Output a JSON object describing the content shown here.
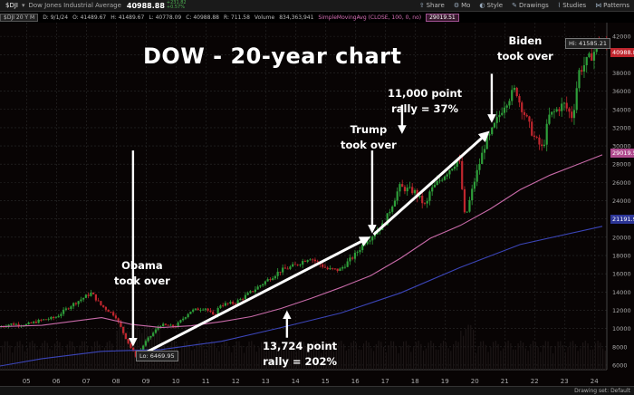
{
  "toolbar": {
    "symbol": "$DJI",
    "description": "Dow Jones Industrial Average",
    "last": "40988.88",
    "change_line1": "+231.82",
    "change_line2": "+0.57%",
    "buttons": [
      {
        "icon": "share-icon",
        "label": "Share"
      },
      {
        "icon": "gear-icon",
        "label": "Mo"
      },
      {
        "icon": "style-icon",
        "label": "Style"
      },
      {
        "icon": "pencil-icon",
        "label": "Drawings"
      },
      {
        "icon": "studies-icon",
        "label": "Studies"
      },
      {
        "icon": "patterns-icon",
        "label": "Patterns"
      }
    ]
  },
  "infoline": {
    "date": "D: 9/1/24",
    "open": "O: 41489.67",
    "high": "H: 41489.67",
    "low": "L: 40778.09",
    "close": "C: 40988.88",
    "range": "R: 711.58",
    "volume_label": "Volume",
    "volume": "834,363,941",
    "sma_label": "SimpleMovingAvg (CLOSE, 100, 0, no)",
    "sma_value": "29019.51",
    "chart_spec": "$DJI 20 Y M"
  },
  "headline": "DOW - 20-year chart",
  "annotations": {
    "obama": "Obama\ntook over",
    "trump": "Trump\ntook over",
    "biden": "Biden\ntook over",
    "rally_11000": "11,000 point\nrally = 37%",
    "rally_13724": "13,724 point\nrally = 202%"
  },
  "labels": {
    "hi": "Hi: 41585.21",
    "lo": "Lo: 6469.95",
    "drawing_set": "Drawing set: Default"
  },
  "price_tags": {
    "last": "40988.88",
    "sma100": "29019.51",
    "blue": "21191.90"
  },
  "chart_data": {
    "type": "candlestick",
    "title": "DOW - 20-year chart",
    "x_tick_labels": [
      "05",
      "06",
      "07",
      "08",
      "09",
      "10",
      "11",
      "12",
      "13",
      "14",
      "15",
      "16",
      "17",
      "18",
      "19",
      "20",
      "21",
      "22",
      "23",
      "24"
    ],
    "x_range": [
      2004.6,
      2024.9
    ],
    "y_tick_labels": [
      6000,
      8000,
      10000,
      12000,
      14000,
      16000,
      18000,
      20000,
      22000,
      24000,
      26000,
      28000,
      30000,
      32000,
      34000,
      36000,
      38000,
      40000,
      42000
    ],
    "y_range": [
      5500,
      43500
    ],
    "price_path": [
      [
        2004.6,
        10150
      ],
      [
        2005.0,
        10500
      ],
      [
        2005.5,
        10400
      ],
      [
        2006.0,
        10900
      ],
      [
        2006.5,
        11200
      ],
      [
        2007.0,
        12500
      ],
      [
        2007.7,
        13900
      ],
      [
        2008.0,
        12600
      ],
      [
        2008.5,
        11400
      ],
      [
        2008.8,
        9300
      ],
      [
        2009.0,
        8000
      ],
      [
        2009.2,
        6900
      ],
      [
        2009.5,
        8500
      ],
      [
        2010.0,
        10400
      ],
      [
        2010.5,
        10200
      ],
      [
        2011.0,
        11900
      ],
      [
        2011.5,
        12300
      ],
      [
        2011.8,
        11300
      ],
      [
        2012.0,
        12600
      ],
      [
        2012.5,
        12800
      ],
      [
        2013.0,
        13900
      ],
      [
        2013.5,
        15100
      ],
      [
        2014.0,
        16300
      ],
      [
        2014.5,
        16900
      ],
      [
        2015.0,
        17800
      ],
      [
        2015.6,
        16500
      ],
      [
        2016.0,
        16400
      ],
      [
        2016.5,
        18000
      ],
      [
        2016.9,
        19700
      ],
      [
        2017.0,
        19900
      ],
      [
        2017.5,
        21500
      ],
      [
        2018.0,
        25500
      ],
      [
        2018.5,
        25000
      ],
      [
        2018.9,
        23300
      ],
      [
        2019.0,
        24900
      ],
      [
        2019.5,
        26800
      ],
      [
        2020.0,
        28600
      ],
      [
        2020.2,
        21900
      ],
      [
        2020.5,
        26000
      ],
      [
        2020.9,
        30600
      ],
      [
        2021.0,
        30900
      ],
      [
        2021.5,
        34500
      ],
      [
        2021.9,
        36300
      ],
      [
        2022.0,
        35000
      ],
      [
        2022.5,
        31000
      ],
      [
        2022.8,
        29600
      ],
      [
        2023.0,
        33200
      ],
      [
        2023.5,
        34600
      ],
      [
        2023.8,
        33100
      ],
      [
        2024.0,
        38100
      ],
      [
        2024.5,
        40200
      ],
      [
        2024.67,
        41585
      ],
      [
        2024.75,
        40989
      ]
    ],
    "sma100_path": [
      [
        2004.6,
        10200
      ],
      [
        2006,
        10350
      ],
      [
        2008,
        11200
      ],
      [
        2009,
        10450
      ],
      [
        2010,
        10100
      ],
      [
        2011,
        10300
      ],
      [
        2012,
        10750
      ],
      [
        2013,
        11300
      ],
      [
        2014,
        12200
      ],
      [
        2015,
        13300
      ],
      [
        2016,
        14500
      ],
      [
        2017,
        15800
      ],
      [
        2018,
        17700
      ],
      [
        2019,
        19900
      ],
      [
        2020,
        21300
      ],
      [
        2021,
        23100
      ],
      [
        2022,
        25200
      ],
      [
        2023,
        26800
      ],
      [
        2024.75,
        29019.51
      ]
    ],
    "long_ma_path": [
      [
        2004.6,
        5900
      ],
      [
        2006,
        6700
      ],
      [
        2008,
        7500
      ],
      [
        2010,
        7700
      ],
      [
        2012,
        8600
      ],
      [
        2014,
        10100
      ],
      [
        2016,
        11700
      ],
      [
        2018,
        13900
      ],
      [
        2020,
        16700
      ],
      [
        2022,
        19200
      ],
      [
        2024.75,
        21191.9
      ]
    ],
    "last": 40988.88,
    "high": 41585.21,
    "low": 6469.95,
    "sma100": 29019.51,
    "long_ma": 21191.9,
    "events": [
      {
        "name": "Obama took over",
        "year": 2009.05
      },
      {
        "name": "Trump took over",
        "year": 2017.05
      },
      {
        "name": "Biden took over",
        "year": 2021.05
      }
    ],
    "rallies": [
      {
        "label": "13,724 point rally = 202%",
        "from": [
          2009.2,
          6900
        ],
        "to": [
          2016.9,
          19900
        ]
      },
      {
        "label": "11,000 point rally = 37%",
        "from": [
          2017.1,
          20300
        ],
        "to": [
          2020.9,
          31400
        ]
      }
    ],
    "grid": true,
    "legend": "none",
    "colors": {
      "up": "#2e9e3a",
      "down": "#c0262e",
      "sma100": "#c86aa8",
      "long_ma": "#3b45b8",
      "background": "#000000",
      "grid": "#2a2a2a"
    }
  }
}
